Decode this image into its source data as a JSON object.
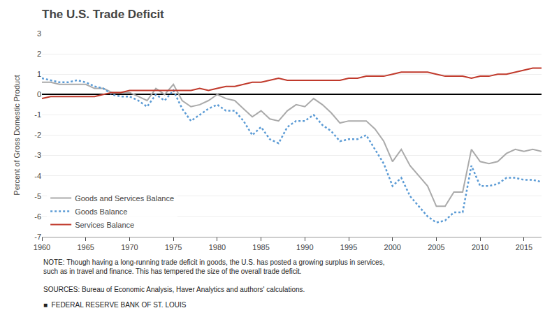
{
  "chart_data": {
    "type": "line",
    "title": "The U.S. Trade Deficit",
    "ylabel": "Percent of Gross Domestic Product",
    "x": [
      1960,
      1961,
      1962,
      1963,
      1964,
      1965,
      1966,
      1967,
      1968,
      1969,
      1970,
      1971,
      1972,
      1973,
      1974,
      1975,
      1976,
      1977,
      1978,
      1979,
      1980,
      1981,
      1982,
      1983,
      1984,
      1985,
      1986,
      1987,
      1988,
      1989,
      1990,
      1991,
      1992,
      1993,
      1994,
      1995,
      1996,
      1997,
      1998,
      1999,
      2000,
      2001,
      2002,
      2003,
      2004,
      2005,
      2006,
      2007,
      2008,
      2009,
      2010,
      2011,
      2012,
      2013,
      2014,
      2015,
      2016,
      2017
    ],
    "series": [
      {
        "name": "Goods and Services Balance",
        "color": "#aaaaaa",
        "line_style": "solid",
        "values": [
          0.6,
          0.6,
          0.5,
          0.5,
          0.5,
          0.5,
          0.3,
          0.3,
          0.1,
          0.1,
          0.1,
          -0.1,
          -0.3,
          0.3,
          0.0,
          0.5,
          -0.3,
          -0.6,
          -0.5,
          -0.3,
          0.0,
          -0.2,
          -0.3,
          -0.7,
          -1.1,
          -0.8,
          -1.2,
          -1.3,
          -0.8,
          -0.5,
          -0.6,
          -0.2,
          -0.5,
          -0.9,
          -1.4,
          -1.3,
          -1.3,
          -1.3,
          -1.7,
          -2.3,
          -3.3,
          -2.7,
          -3.5,
          -4.0,
          -4.5,
          -5.5,
          -5.5,
          -4.8,
          -4.8,
          -2.7,
          -3.3,
          -3.4,
          -3.3,
          -2.9,
          -2.7,
          -2.8,
          -2.7,
          -2.8
        ]
      },
      {
        "name": "Goods Balance",
        "color": "#5b9bd5",
        "line_style": "dotted",
        "values": [
          0.8,
          0.7,
          0.6,
          0.6,
          0.7,
          0.6,
          0.4,
          0.3,
          0.0,
          -0.1,
          -0.1,
          -0.3,
          -0.6,
          0.0,
          -0.3,
          0.2,
          -0.7,
          -1.3,
          -1.0,
          -0.7,
          -0.5,
          -0.8,
          -0.8,
          -1.3,
          -2.0,
          -1.6,
          -2.2,
          -2.4,
          -1.6,
          -1.3,
          -1.3,
          -1.0,
          -1.5,
          -1.8,
          -2.3,
          -2.2,
          -2.2,
          -2.0,
          -2.7,
          -3.4,
          -4.5,
          -4.1,
          -5.0,
          -5.5,
          -6.0,
          -6.3,
          -6.2,
          -5.8,
          -5.8,
          -3.5,
          -4.5,
          -4.5,
          -4.4,
          -4.1,
          -4.1,
          -4.2,
          -4.2,
          -4.3
        ]
      },
      {
        "name": "Services Balance",
        "color": "#c0392b",
        "line_style": "solid",
        "values": [
          -0.2,
          -0.1,
          -0.1,
          -0.1,
          -0.1,
          -0.1,
          -0.1,
          0.0,
          0.1,
          0.1,
          0.2,
          0.2,
          0.2,
          0.2,
          0.2,
          0.2,
          0.2,
          0.2,
          0.3,
          0.2,
          0.3,
          0.4,
          0.4,
          0.5,
          0.6,
          0.6,
          0.7,
          0.8,
          0.7,
          0.7,
          0.7,
          0.7,
          0.7,
          0.7,
          0.7,
          0.8,
          0.8,
          0.9,
          0.9,
          0.9,
          1.0,
          1.1,
          1.1,
          1.1,
          1.1,
          1.0,
          0.9,
          0.9,
          0.9,
          0.8,
          0.9,
          0.9,
          1.0,
          1.0,
          1.1,
          1.2,
          1.3,
          1.3
        ]
      }
    ],
    "xlim": [
      1960,
      2017
    ],
    "xticks": [
      1960,
      1965,
      1970,
      1975,
      1980,
      1985,
      1990,
      1995,
      2000,
      2005,
      2010,
      2015
    ],
    "ylim": [
      -7,
      3
    ],
    "yticks": [
      -7,
      -6,
      -5,
      -4,
      -3,
      -2,
      -1,
      0,
      1,
      2,
      3
    ],
    "grid": "y",
    "legend": "lower left",
    "annotations": [
      "NOTE: Though having a long-running trade deficit in goods, the U.S. has posted a growing surplus in services,\nsuch as in travel and finance. This has tempered the size of the overall trade deficit.",
      "SOURCES: Bureau of Economic Analysis, Haver Analytics and authors' calculations.",
      "■  FEDERAL RESERVE BANK OF ST. LOUIS"
    ]
  }
}
